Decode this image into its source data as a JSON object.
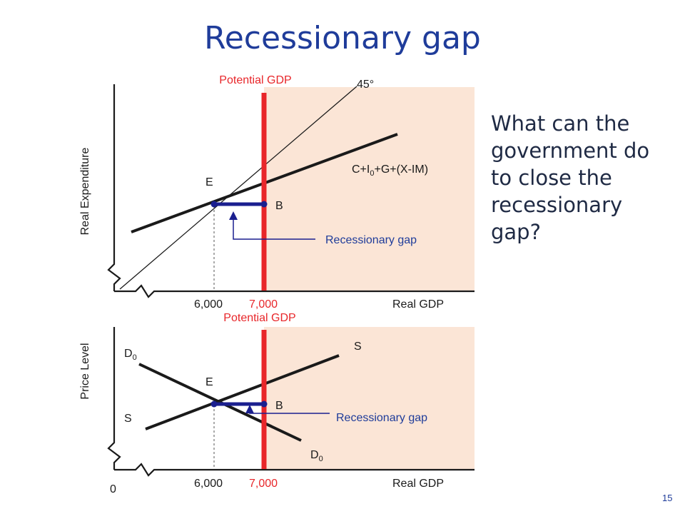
{
  "slide": {
    "title": "Recessionary gap",
    "question": "What can the government do to close the recessionary gap?",
    "page_number": "15"
  },
  "colors": {
    "title": "#1f3c9a",
    "shaded_region": "#fbe5d6",
    "potential_line": "#e8262a",
    "gap_bar": "#1a1f8f",
    "curves": "#1a1a1a"
  },
  "top_diagram": {
    "ylabel": "Real Expenditure",
    "xlabel": "Real GDP",
    "potential_label": "Potential GDP",
    "line_45_label": "45°",
    "ae_label_parts": [
      "C+I",
      "0",
      "+G+(X-IM)"
    ],
    "point_e": "E",
    "point_b": "B",
    "gap_label": "Recessionary gap",
    "x_ticks": [
      "6,000",
      "7,000"
    ]
  },
  "bottom_diagram": {
    "ylabel": "Price Level",
    "xlabel": "Real GDP",
    "potential_label": "Potential GDP",
    "origin": "0",
    "supply_label_upper": "S",
    "supply_label_lower": "S",
    "demand_label_upper": [
      "D",
      "0"
    ],
    "demand_label_lower": [
      "D",
      "0"
    ],
    "point_e": "E",
    "point_b": "B",
    "gap_label": "Recessionary gap",
    "x_ticks": [
      "6,000",
      "7,000"
    ]
  }
}
